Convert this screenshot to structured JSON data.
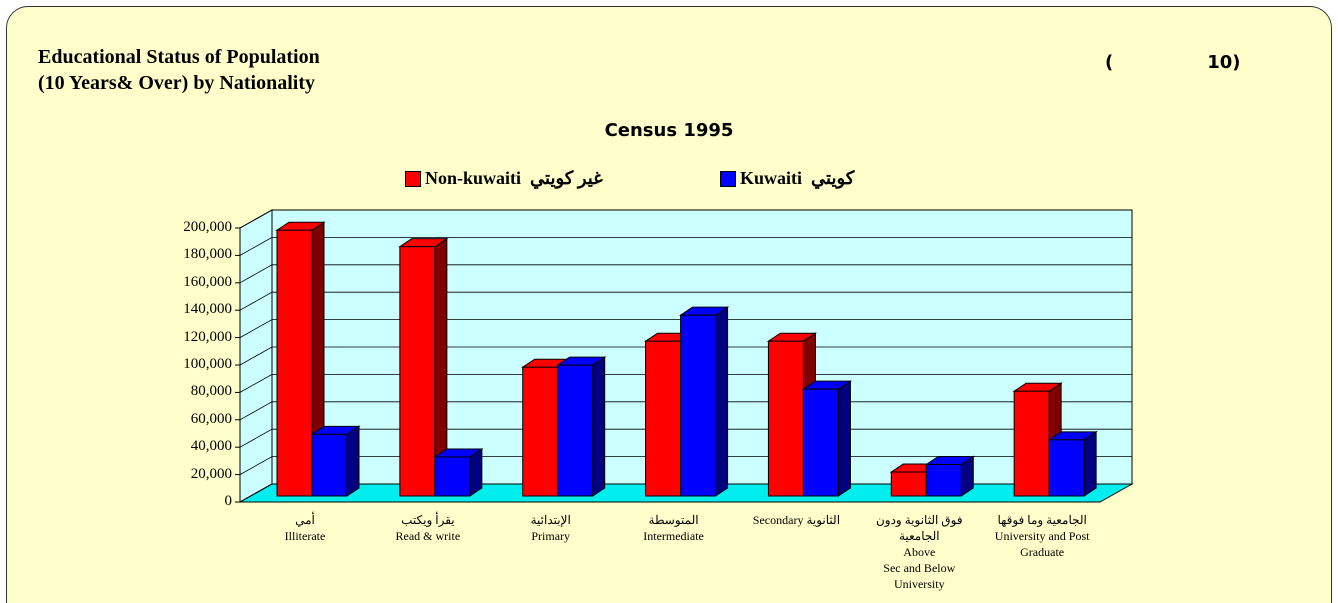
{
  "chart_data": {
    "type": "bar3d",
    "title": "Educational Status of Population\n(10 Years& Over) by Nationality",
    "table_number": "(               10)",
    "subtitle": "Census 1995",
    "categories": [
      "أمي\nIlliterate",
      "يقرأ ويكتب\nRead & write",
      "الإبتدائية\nPrimary",
      "المتوسطة\nIntermediate",
      "Secondary      الثانوية",
      "فوق الثانوية ودون الجامعية\nAbove\nSec and Below\nUniversity",
      "الجامعية وما فوقها\nUniversity and Post\nGraduate"
    ],
    "series": [
      {
        "name": "Non-kuwaiti  غير كويتي",
        "color": "#ff0000",
        "side_color": "#800000",
        "values": [
          194000,
          182000,
          94000,
          113000,
          113000,
          17500,
          76500
        ]
      },
      {
        "name": "Kuwaiti  كويتي",
        "color": "#0000ff",
        "side_color": "#000080",
        "values": [
          45000,
          28500,
          95500,
          132000,
          78000,
          23000,
          41000
        ]
      }
    ],
    "ylim": [
      0,
      200000
    ],
    "yticks": [
      {
        "value": 0,
        "label": "0"
      },
      {
        "value": 20000,
        "label": "20,000"
      },
      {
        "value": 40000,
        "label": "40,000"
      },
      {
        "value": 60000,
        "label": "60,000"
      },
      {
        "value": 80000,
        "label": "80,000"
      },
      {
        "value": 100000,
        "label": "100,000"
      },
      {
        "value": 120000,
        "label": "120,000"
      },
      {
        "value": 140000,
        "label": "140,000"
      },
      {
        "value": 160000,
        "label": "160,000"
      },
      {
        "value": 180000,
        "label": "180,000"
      },
      {
        "value": 200000,
        "label": "200,000"
      }
    ],
    "grid": true
  }
}
